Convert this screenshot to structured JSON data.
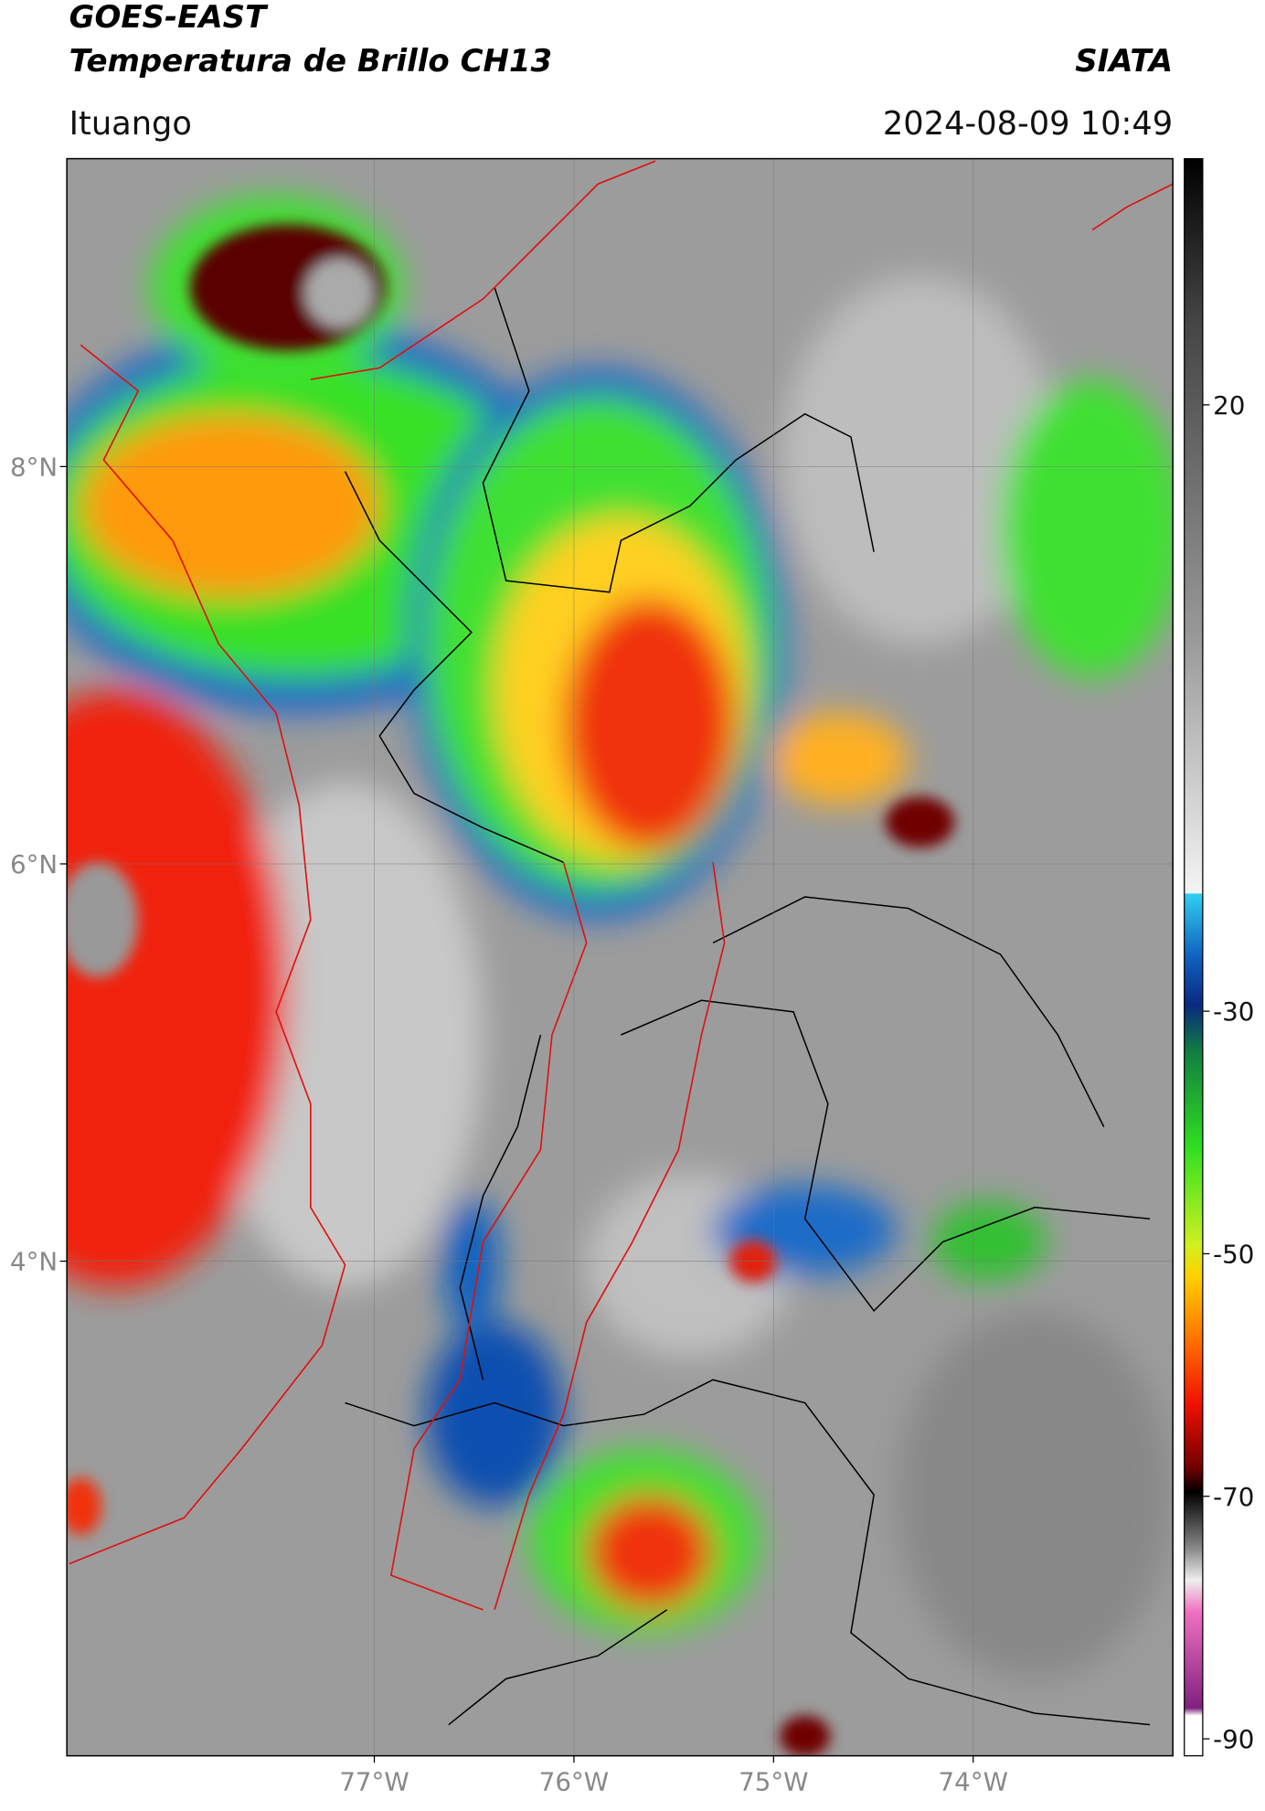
{
  "header": {
    "title": "GOES-EAST",
    "subtitle": "Temperatura de Brillo CH13",
    "source": "SIATA",
    "location": "Ituango",
    "datetime": "2024-08-09 10:49"
  },
  "map": {
    "lat_range": [
      1.51,
      9.55
    ],
    "lon_range": [
      -78.54,
      -73.0
    ],
    "lat_ticks": [
      {
        "value": 8,
        "label": "8°N"
      },
      {
        "value": 6,
        "label": "6°N"
      },
      {
        "value": 4,
        "label": "4°N"
      }
    ],
    "lon_ticks": [
      {
        "value": -77,
        "label": "77°W"
      },
      {
        "value": -76,
        "label": "76°W"
      },
      {
        "value": -75,
        "label": "75°W"
      },
      {
        "value": -74,
        "label": "74°W"
      }
    ],
    "grid": true
  },
  "colorbar": {
    "range": [
      40.3,
      -91.4
    ],
    "ticks": [
      20,
      -30,
      -50,
      -70,
      -90
    ]
  }
}
